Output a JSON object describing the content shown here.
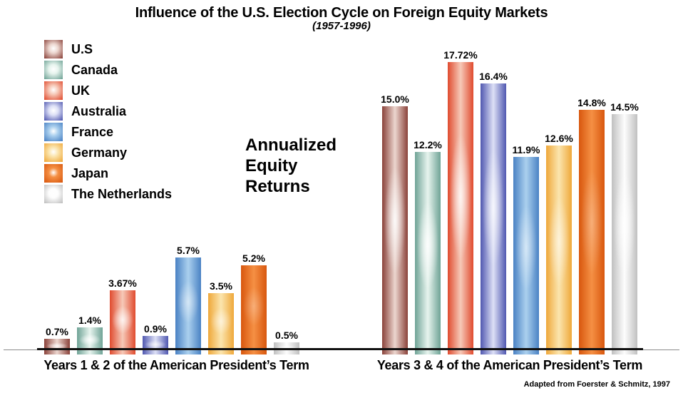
{
  "chart_data": {
    "type": "bar",
    "title": "Influence of the U.S. Election Cycle on Foreign Equity Markets",
    "subtitle": "(1957-1996)",
    "center_annotation": "Annualized Equity Returns",
    "attribution": "Adapted from Foerster & Schmitz, 1997",
    "unit": "%",
    "ylim": [
      0,
      18
    ],
    "grid": false,
    "legend_position": "top-left",
    "series": [
      {
        "name": "U.S",
        "color_edge": "#8a423a",
        "color_light": "#ecd6cf",
        "glow": 0.85
      },
      {
        "name": "Canada",
        "color_edge": "#6fa396",
        "color_light": "#e7f4ee",
        "glow": 0.88
      },
      {
        "name": "UK",
        "color_edge": "#e04b2f",
        "color_light": "#f6c9b8",
        "glow": 0.8
      },
      {
        "name": "Australia",
        "color_edge": "#5058b0",
        "color_light": "#dde0f6",
        "glow": 0.72
      },
      {
        "name": "France",
        "color_edge": "#4a82c4",
        "color_light": "#abd0ee",
        "glow": 0.5
      },
      {
        "name": "Germany",
        "color_edge": "#efa83a",
        "color_light": "#fbe5ae",
        "glow": 0.55
      },
      {
        "name": "Japan",
        "color_edge": "#d8570e",
        "color_light": "#f59044",
        "glow": 0.28
      },
      {
        "name": "The Netherlands",
        "color_edge": "#c0c0c0",
        "color_light": "#fdfdfd",
        "glow": 0.85
      }
    ],
    "groups": [
      {
        "label": "Years 1 & 2 of the American President’s Term",
        "values": [
          0.7,
          1.4,
          3.67,
          0.9,
          5.7,
          3.5,
          5.2,
          0.5
        ],
        "value_labels": [
          "0.7%",
          "1.4%",
          "3.67%",
          "0.9%",
          "5.7%",
          "3.5%",
          "5.2%",
          "0.5%"
        ]
      },
      {
        "label": "Years 3 & 4 of the American President’s Term",
        "values": [
          15.0,
          12.2,
          17.72,
          16.4,
          11.9,
          12.6,
          14.8,
          14.5
        ],
        "value_labels": [
          "15.0%",
          "12.2%",
          "17.72%",
          "16.4%",
          "11.9%",
          "12.6%",
          "14.8%",
          "14.5%"
        ]
      }
    ]
  }
}
